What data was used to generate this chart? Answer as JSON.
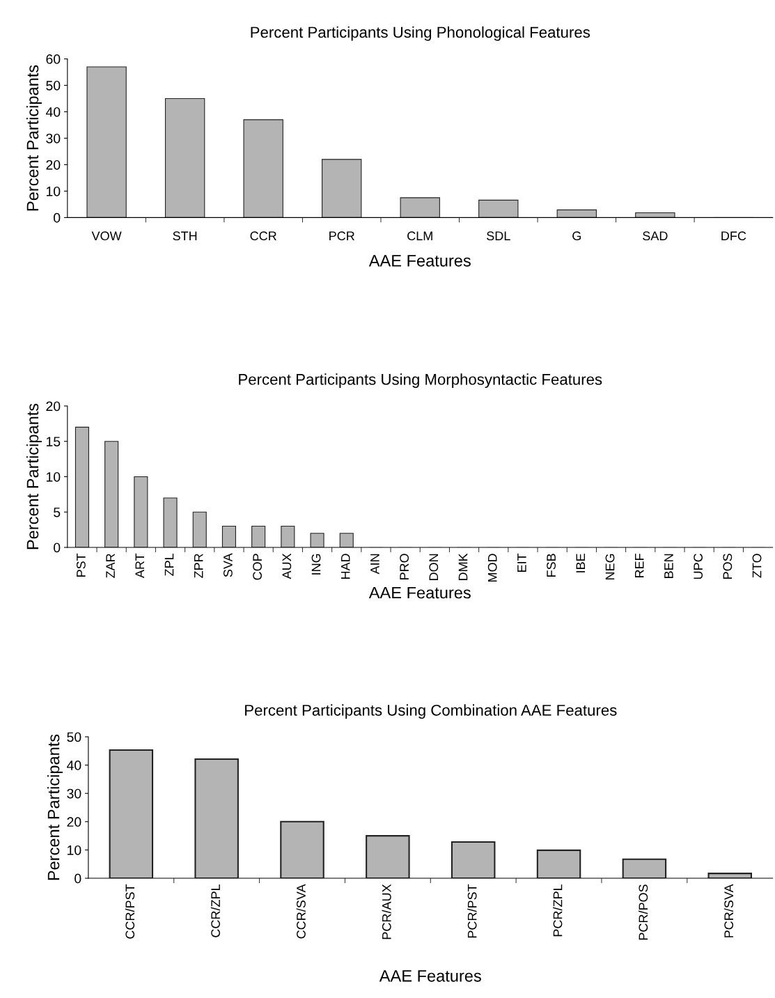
{
  "chart_data": [
    {
      "type": "bar",
      "title": "Percent Participants Using Phonological Features",
      "xlabel": "AAE Features",
      "ylabel": "Percent Participants",
      "categories": [
        "VOW",
        "STH",
        "CCR",
        "PCR",
        "CLM",
        "SDL",
        "G",
        "SAD",
        "DFC"
      ],
      "values": [
        57,
        45,
        37,
        22,
        7.5,
        6.6,
        2.9,
        1.8,
        0
      ],
      "color": "#b4b4b4",
      "ylim": [
        0,
        60
      ],
      "yticks": [
        0,
        10,
        20,
        30,
        40,
        50,
        60
      ],
      "grid": false,
      "legend": false
    },
    {
      "type": "bar",
      "title": "Percent Participants Using Morphosyntactic Features",
      "xlabel": "AAE Features",
      "ylabel": "Percent Participants",
      "categories": [
        "PST",
        "ZAR",
        "ART",
        "ZPL",
        "ZPR",
        "SVA",
        "COP",
        "AUX",
        "ING",
        "HAD",
        "AIN",
        "PRO",
        "DON",
        "DMK",
        "MOD",
        "EIT",
        "FSB",
        "IBE",
        "NEG",
        "REF",
        "BEN",
        "UPC",
        "POS",
        "ZTO"
      ],
      "values": [
        17,
        15,
        10,
        7,
        5,
        3,
        3,
        3,
        2,
        2,
        0,
        0,
        0,
        0,
        0,
        0,
        0,
        0,
        0,
        0,
        0,
        0,
        0,
        0
      ],
      "color": "#b4b4b4",
      "ylim": [
        0,
        20
      ],
      "yticks": [
        0,
        5,
        10,
        15,
        20
      ],
      "grid": false,
      "legend": false
    },
    {
      "type": "bar",
      "title": "Percent Participants Using Combination AAE Features",
      "xlabel": "AAE Features",
      "ylabel": "Percent Participants",
      "categories": [
        "CCR/PST",
        "CCR/ZPL",
        "CCR/SVA",
        "PCR/AUX",
        "PCR/PST",
        "PCR/ZPL",
        "PCR/POS",
        "PCR/SVA"
      ],
      "values": [
        45.3,
        42.1,
        20,
        15,
        12.8,
        9.9,
        6.7,
        1.7
      ],
      "color": "#b4b4b4",
      "ylim": [
        0,
        50
      ],
      "yticks": [
        0,
        10,
        20,
        30,
        40,
        50
      ],
      "grid": false,
      "legend": false
    }
  ]
}
